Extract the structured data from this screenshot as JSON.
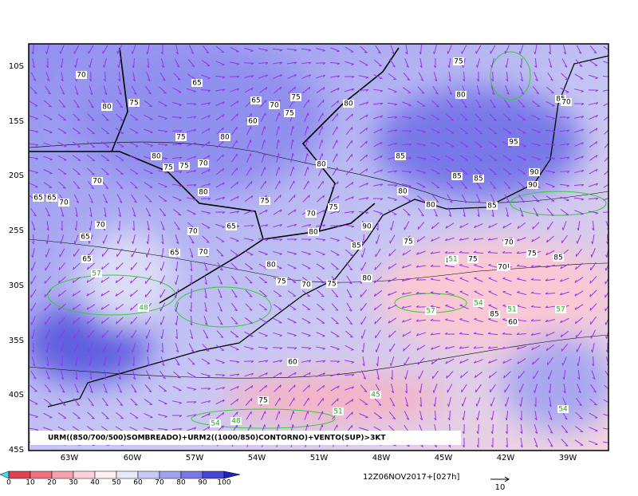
{
  "map": {
    "title": "URM((850/700/500)SOMBREADO)+URM2((1000/850)CONTORNO)+VENTO(SUP)>3KT",
    "lat_labels": [
      "10S",
      "15S",
      "20S",
      "25S",
      "30S",
      "35S",
      "40S",
      "45S"
    ],
    "lon_labels": [
      "63W",
      "60W",
      "57W",
      "54W",
      "51W",
      "48W",
      "45W",
      "42W",
      "39W"
    ],
    "colorbar": {
      "labels": [
        0,
        10,
        20,
        30,
        40,
        50,
        60,
        70,
        80,
        90,
        100
      ]
    },
    "timestamp": "12Z06NOV2017+[027h]",
    "vector_scale": "10",
    "contour_labels": [
      "70",
      "65",
      "75",
      "80",
      "65",
      "75",
      "70",
      "80",
      "75",
      "60",
      "80",
      "75",
      "75",
      "85",
      "80",
      "80",
      "70",
      "95",
      "85",
      "85",
      "90",
      "75",
      "70",
      "80",
      "75",
      "80",
      "70",
      "65",
      "75",
      "80",
      "70",
      "75",
      "70",
      "80",
      "90",
      "85",
      "70",
      "65",
      "60",
      "75",
      "70",
      "65",
      "70",
      "65",
      "70",
      "80",
      "75",
      "70",
      "85",
      "90",
      "80",
      "75",
      "85",
      "80",
      "65",
      "65",
      "70",
      "75",
      "85",
      "60",
      "75",
      "80",
      "75",
      "70",
      "85",
      "57",
      "51",
      "51",
      "54",
      "57",
      "54",
      "48",
      "45",
      "54",
      "48",
      "51",
      "57"
    ]
  }
}
